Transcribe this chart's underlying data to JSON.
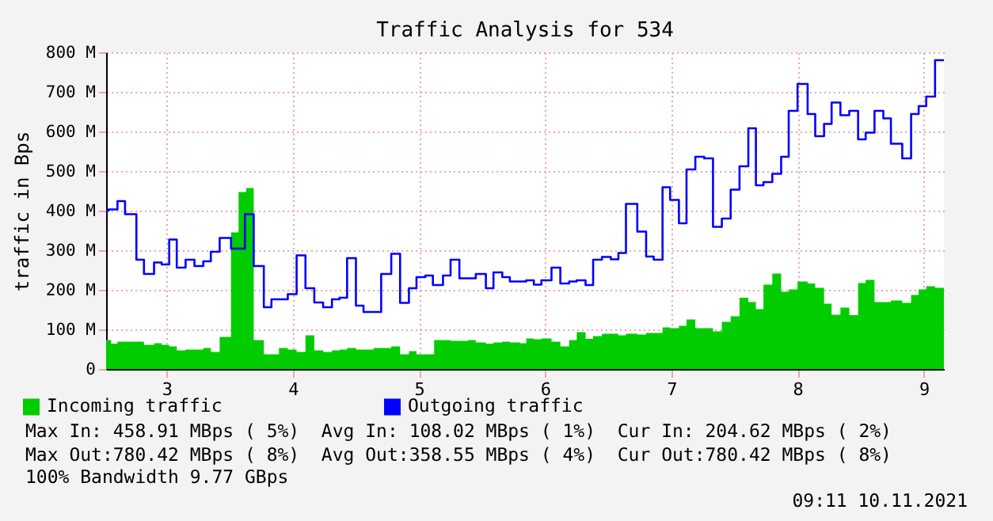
{
  "chart_data": {
    "type": "step",
    "title": "Traffic Analysis for 534",
    "ylabel": "traffic in Bps",
    "xlim": [
      2.52,
      9.16
    ],
    "xticks": [
      3,
      4,
      5,
      6,
      7,
      8,
      9
    ],
    "ylim": [
      0,
      800
    ],
    "yticks": [
      0,
      {
        "value": 100,
        "label": "100 M"
      },
      {
        "value": 200,
        "label": "200 M"
      },
      {
        "value": 300,
        "label": "300 M"
      },
      {
        "value": 400,
        "label": "400 M"
      },
      {
        "value": 500,
        "label": "500 M"
      },
      {
        "value": 600,
        "label": "600 M"
      },
      {
        "value": 700,
        "label": "700 M"
      },
      {
        "value": 800,
        "label": "800 M"
      }
    ],
    "grid": true,
    "legend": "bottom left",
    "series": [
      {
        "name": "Incoming traffic",
        "type": "area",
        "color": "#00cc00",
        "x": [
          2.52,
          2.56,
          2.61,
          2.82,
          2.9,
          2.96,
          3.02,
          3.08,
          3.15,
          3.29,
          3.35,
          3.42,
          3.51,
          3.57,
          3.63,
          3.69,
          3.77,
          3.89,
          3.96,
          4.03,
          4.1,
          4.17,
          4.24,
          4.31,
          4.37,
          4.43,
          4.5,
          4.56,
          4.64,
          4.78,
          4.85,
          4.92,
          4.98,
          5.12,
          5.25,
          5.39,
          5.45,
          5.53,
          5.59,
          5.66,
          5.72,
          5.8,
          5.85,
          5.91,
          5.97,
          6.05,
          6.12,
          6.19,
          6.25,
          6.32,
          6.38,
          6.45,
          6.58,
          6.64,
          6.73,
          6.8,
          6.93,
          6.99,
          7.06,
          7.12,
          7.19,
          7.33,
          7.4,
          7.47,
          7.54,
          7.61,
          7.67,
          7.73,
          7.8,
          7.87,
          7.93,
          8.0,
          8.08,
          8.14,
          8.21,
          8.27,
          8.34,
          8.41,
          8.48,
          8.54,
          8.61,
          8.74,
          8.83,
          8.9,
          8.96,
          9.02,
          9.09,
          9.16
        ],
        "values": [
          73,
          64,
          69,
          61,
          65,
          61,
          57,
          47,
          49,
          53,
          43,
          81,
          345,
          447,
          457,
          73,
          37,
          53,
          49,
          43,
          85,
          47,
          43,
          47,
          49,
          53,
          49,
          49,
          53,
          57,
          37,
          45,
          37,
          73,
          71,
          73,
          67,
          64,
          67,
          69,
          67,
          65,
          77,
          75,
          77,
          69,
          57,
          73,
          93,
          76,
          83,
          89,
          85,
          89,
          87,
          91,
          105,
          103,
          109,
          125,
          103,
          95,
          119,
          133,
          180,
          169,
          151,
          213,
          241,
          195,
          201,
          221,
          216,
          205,
          165,
          137,
          155,
          136,
          217,
          225,
          169,
          173,
          167,
          187,
          201,
          209,
          205,
          205
        ]
      },
      {
        "name": "Outgoing traffic",
        "color": "#0000ff",
        "x": [
          2.52,
          2.54,
          2.61,
          2.67,
          2.76,
          2.82,
          2.9,
          2.96,
          3.02,
          3.08,
          3.15,
          3.22,
          3.29,
          3.35,
          3.42,
          3.51,
          3.62,
          3.69,
          3.77,
          3.83,
          3.96,
          4.03,
          4.1,
          4.17,
          4.24,
          4.31,
          4.37,
          4.43,
          4.5,
          4.56,
          4.7,
          4.78,
          4.85,
          4.92,
          4.98,
          5.05,
          5.11,
          5.19,
          5.25,
          5.32,
          5.45,
          5.53,
          5.59,
          5.66,
          5.72,
          5.8,
          5.85,
          5.91,
          5.97,
          6.05,
          6.12,
          6.19,
          6.25,
          6.32,
          6.38,
          6.45,
          6.52,
          6.58,
          6.64,
          6.73,
          6.8,
          6.86,
          6.93,
          6.99,
          7.06,
          7.12,
          7.19,
          7.26,
          7.33,
          7.4,
          7.47,
          7.54,
          7.61,
          7.67,
          7.73,
          7.8,
          7.87,
          7.93,
          8.0,
          8.08,
          8.14,
          8.21,
          8.27,
          8.34,
          8.41,
          8.48,
          8.54,
          8.61,
          8.68,
          8.74,
          8.83,
          8.9,
          8.96,
          9.02,
          9.09,
          9.16
        ],
        "values": [
          400,
          403,
          424,
          391,
          276,
          240,
          269,
          264,
          327,
          256,
          276,
          260,
          272,
          296,
          331,
          304,
          391,
          260,
          156,
          176,
          189,
          287,
          204,
          168,
          156,
          176,
          180,
          280,
          160,
          144,
          240,
          291,
          167,
          204,
          232,
          236,
          212,
          236,
          276,
          229,
          240,
          204,
          244,
          232,
          221,
          221,
          224,
          213,
          224,
          256,
          216,
          221,
          224,
          212,
          276,
          283,
          277,
          293,
          417,
          347,
          284,
          276,
          459,
          427,
          368,
          504,
          536,
          532,
          359,
          380,
          453,
          512,
          608,
          464,
          472,
          493,
          536,
          652,
          720,
          644,
          588,
          619,
          673,
          641,
          652,
          580,
          597,
          652,
          633,
          569,
          532,
          644,
          664,
          688,
          780,
          780
        ]
      }
    ],
    "annotations": [
      "Max In: 458.91 MBps ( 5%)  Avg In: 108.02 MBps ( 1%)  Cur In: 204.62 MBps ( 2%)",
      "Max Out:780.42 MBps ( 8%)  Avg Out:358.55 MBps ( 4%)  Cur Out:780.42 MBps ( 8%)",
      "100% Bandwidth 9.77 GBps",
      "09:11 10.11.2021"
    ]
  }
}
